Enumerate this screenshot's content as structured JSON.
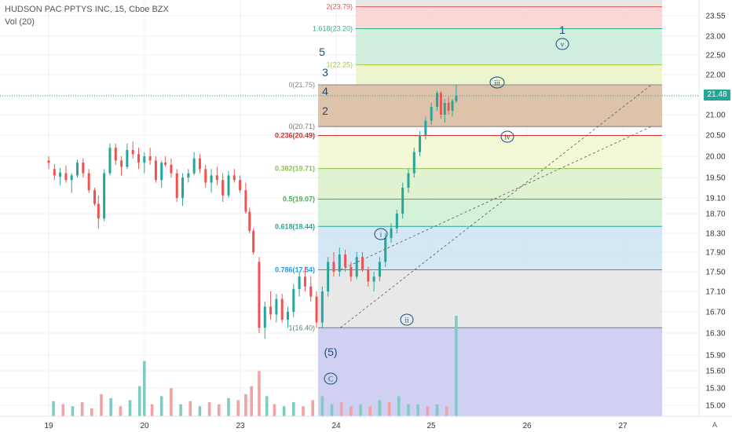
{
  "legend": {
    "symbol": "HUDSON PAC PPTYS INC, 15, Cboe BZX",
    "volume_label": "Vol (20)"
  },
  "last_price": "21.48",
  "auto_label": "A",
  "colors": {
    "up": "#26a69a",
    "down": "#ef5350",
    "wave_blue": "#1a4d7c",
    "grid": "#eef0f3"
  },
  "chart_data": {
    "type": "candlestick",
    "y_axis": {
      "ticks": [
        "23.55",
        "23.00",
        "22.50",
        "22.00",
        "21.50",
        "21.00",
        "20.50",
        "20.00",
        "19.50",
        "19.10",
        "18.70",
        "18.30",
        "17.90",
        "17.50",
        "17.10",
        "16.70",
        "16.30",
        "15.90",
        "15.60",
        "15.30",
        "15.00"
      ]
    },
    "x_axis": {
      "ticks": [
        "19",
        "20",
        "23",
        "24",
        "25",
        "26",
        "27"
      ]
    },
    "fib_levels": [
      {
        "label": "2(23.79)",
        "value": 23.79,
        "color": "#e05555",
        "fill": "#f8d0d0"
      },
      {
        "label": "1.618(23.20)",
        "value": 23.2,
        "color": "#2db380",
        "fill": "#c8ecd9"
      },
      {
        "label": "1(22.25)",
        "value": 22.25,
        "color": "#a6c83a",
        "fill": "#e9f3c4"
      },
      {
        "label": "0(21.75)",
        "value": 21.75,
        "color": "#888888",
        "fill": null
      },
      {
        "label": "0(20.71)",
        "value": 20.71,
        "color": "#777777",
        "fill": null
      },
      {
        "label": "0.236(20.49)",
        "value": 20.49,
        "color": "#d32f2f",
        "fill": "#f1f7cf"
      },
      {
        "label": "0.382(19.71)",
        "value": 19.71,
        "color": "#8bc34a",
        "fill": "#dbf0c8"
      },
      {
        "label": "0.5(19.07)",
        "value": 19.07,
        "color": "#4caf50",
        "fill": "#cdeed3"
      },
      {
        "label": "0.618(18.44)",
        "value": 18.44,
        "color": "#26a69a",
        "fill": "#cde3f3"
      },
      {
        "label": "0.786(17.54)",
        "value": 17.54,
        "color": "#2196f3",
        "fill": "#e4e4e4"
      },
      {
        "label": "1(16.40)",
        "value": 16.4,
        "color": "#607d8b",
        "fill": "#cfd0f2"
      }
    ],
    "wave_labels": [
      {
        "text": "1",
        "circled": false
      },
      {
        "text": "v",
        "circled": true
      },
      {
        "text": "5",
        "circled": false
      },
      {
        "text": "3",
        "circled": false
      },
      {
        "text": "4",
        "circled": false
      },
      {
        "text": "2",
        "circled": false
      },
      {
        "text": "iii",
        "circled": true
      },
      {
        "text": "iv",
        "circled": true
      },
      {
        "text": "i",
        "circled": true
      },
      {
        "text": "ii",
        "circled": true
      },
      {
        "text": "(5)",
        "circled": false
      },
      {
        "text": "C",
        "circled": true
      }
    ],
    "candles": [
      {
        "t": 0,
        "o": 19.9,
        "h": 20.0,
        "l": 19.7,
        "c": 19.85
      },
      {
        "t": 0.06,
        "o": 19.7,
        "h": 19.82,
        "l": 19.45,
        "c": 19.55
      },
      {
        "t": 0.12,
        "o": 19.52,
        "h": 19.72,
        "l": 19.35,
        "c": 19.62
      },
      {
        "t": 0.18,
        "o": 19.6,
        "h": 19.78,
        "l": 19.4,
        "c": 19.45
      },
      {
        "t": 0.24,
        "o": 19.45,
        "h": 19.6,
        "l": 19.2,
        "c": 19.55
      },
      {
        "t": 0.3,
        "o": 19.55,
        "h": 19.92,
        "l": 19.5,
        "c": 19.85
      },
      {
        "t": 0.36,
        "o": 19.85,
        "h": 19.95,
        "l": 19.5,
        "c": 19.6
      },
      {
        "t": 0.42,
        "o": 19.6,
        "h": 19.7,
        "l": 19.2,
        "c": 19.25
      },
      {
        "t": 0.48,
        "o": 19.25,
        "h": 19.3,
        "l": 18.9,
        "c": 18.95
      },
      {
        "t": 0.52,
        "o": 18.95,
        "h": 19.15,
        "l": 18.4,
        "c": 18.6
      },
      {
        "t": 0.58,
        "o": 18.6,
        "h": 19.7,
        "l": 18.55,
        "c": 19.6
      },
      {
        "t": 0.64,
        "o": 19.6,
        "h": 20.3,
        "l": 19.55,
        "c": 20.2
      },
      {
        "t": 0.7,
        "o": 20.2,
        "h": 20.3,
        "l": 19.8,
        "c": 19.9
      },
      {
        "t": 0.76,
        "o": 19.9,
        "h": 20.0,
        "l": 19.55,
        "c": 19.75
      },
      {
        "t": 0.82,
        "o": 19.75,
        "h": 20.3,
        "l": 19.7,
        "c": 20.15
      },
      {
        "t": 0.88,
        "o": 20.15,
        "h": 20.35,
        "l": 19.95,
        "c": 20.05
      },
      {
        "t": 0.94,
        "o": 20.05,
        "h": 20.2,
        "l": 19.7,
        "c": 19.85
      },
      {
        "t": 1.0,
        "o": 19.85,
        "h": 20.1,
        "l": 19.6,
        "c": 20.0
      },
      {
        "t": 1.06,
        "o": 20.0,
        "h": 20.2,
        "l": 19.8,
        "c": 19.9
      },
      {
        "t": 1.12,
        "o": 19.9,
        "h": 20.0,
        "l": 19.4,
        "c": 19.45
      },
      {
        "t": 1.18,
        "o": 19.45,
        "h": 19.9,
        "l": 19.3,
        "c": 19.85
      },
      {
        "t": 1.22,
        "o": 19.85,
        "h": 20.0,
        "l": 19.75,
        "c": 19.8
      },
      {
        "t": 1.28,
        "o": 19.8,
        "h": 19.95,
        "l": 19.5,
        "c": 19.6
      },
      {
        "t": 1.34,
        "o": 19.6,
        "h": 19.7,
        "l": 19.0,
        "c": 19.1
      },
      {
        "t": 1.4,
        "o": 19.1,
        "h": 19.6,
        "l": 18.9,
        "c": 19.5
      },
      {
        "t": 1.46,
        "o": 19.5,
        "h": 19.7,
        "l": 19.4,
        "c": 19.6
      },
      {
        "t": 1.52,
        "o": 19.6,
        "h": 20.1,
        "l": 19.55,
        "c": 19.95
      },
      {
        "t": 1.58,
        "o": 19.95,
        "h": 20.05,
        "l": 19.6,
        "c": 19.7
      },
      {
        "t": 1.64,
        "o": 19.7,
        "h": 19.8,
        "l": 19.3,
        "c": 19.4
      },
      {
        "t": 1.7,
        "o": 19.4,
        "h": 19.7,
        "l": 19.2,
        "c": 19.55
      },
      {
        "t": 1.76,
        "o": 19.55,
        "h": 19.75,
        "l": 19.35,
        "c": 19.45
      },
      {
        "t": 1.82,
        "o": 19.45,
        "h": 19.6,
        "l": 19.0,
        "c": 19.15
      },
      {
        "t": 1.88,
        "o": 19.15,
        "h": 19.65,
        "l": 19.1,
        "c": 19.55
      },
      {
        "t": 1.94,
        "o": 19.55,
        "h": 19.7,
        "l": 19.4,
        "c": 19.45
      },
      {
        "t": 2.0,
        "o": 19.45,
        "h": 19.55,
        "l": 19.2,
        "c": 19.25
      },
      {
        "t": 2.06,
        "o": 19.25,
        "h": 19.4,
        "l": 18.7,
        "c": 18.75
      },
      {
        "t": 2.1,
        "o": 18.75,
        "h": 18.85,
        "l": 18.3,
        "c": 18.35
      },
      {
        "t": 2.14,
        "o": 18.35,
        "h": 18.4,
        "l": 17.85,
        "c": 17.9
      },
      {
        "t": 2.2,
        "o": 17.7,
        "h": 17.8,
        "l": 16.3,
        "c": 16.4
      },
      {
        "t": 2.26,
        "o": 16.4,
        "h": 16.9,
        "l": 16.2,
        "c": 16.8
      },
      {
        "t": 2.32,
        "o": 16.8,
        "h": 17.1,
        "l": 16.55,
        "c": 16.65
      },
      {
        "t": 2.38,
        "o": 16.65,
        "h": 17.05,
        "l": 16.5,
        "c": 16.95
      },
      {
        "t": 2.44,
        "o": 16.95,
        "h": 17.05,
        "l": 16.5,
        "c": 16.55
      },
      {
        "t": 2.5,
        "o": 16.55,
        "h": 16.8,
        "l": 16.4,
        "c": 16.7
      },
      {
        "t": 2.56,
        "o": 16.7,
        "h": 17.25,
        "l": 16.6,
        "c": 17.15
      },
      {
        "t": 2.62,
        "o": 17.15,
        "h": 17.5,
        "l": 17.0,
        "c": 17.4
      },
      {
        "t": 2.68,
        "o": 17.4,
        "h": 17.6,
        "l": 17.1,
        "c": 17.2
      },
      {
        "t": 2.74,
        "o": 17.2,
        "h": 17.4,
        "l": 16.9,
        "c": 17.0
      },
      {
        "t": 2.8,
        "o": 17.0,
        "h": 17.1,
        "l": 16.4,
        "c": 16.5
      },
      {
        "t": 2.86,
        "o": 16.5,
        "h": 17.2,
        "l": 16.4,
        "c": 17.1
      },
      {
        "t": 2.92,
        "o": 17.1,
        "h": 17.8,
        "l": 17.0,
        "c": 17.7
      },
      {
        "t": 2.98,
        "o": 17.7,
        "h": 17.9,
        "l": 17.4,
        "c": 17.5
      },
      {
        "t": 3.04,
        "o": 17.5,
        "h": 18.0,
        "l": 17.4,
        "c": 17.85
      },
      {
        "t": 3.1,
        "o": 17.85,
        "h": 17.95,
        "l": 17.5,
        "c": 17.6
      },
      {
        "t": 3.16,
        "o": 17.6,
        "h": 17.7,
        "l": 17.3,
        "c": 17.4
      },
      {
        "t": 3.22,
        "o": 17.4,
        "h": 17.9,
        "l": 17.35,
        "c": 17.8
      },
      {
        "t": 3.28,
        "o": 17.8,
        "h": 17.9,
        "l": 17.5,
        "c": 17.55
      },
      {
        "t": 3.34,
        "o": 17.55,
        "h": 17.6,
        "l": 17.2,
        "c": 17.3
      },
      {
        "t": 3.4,
        "o": 17.3,
        "h": 17.5,
        "l": 17.1,
        "c": 17.4
      },
      {
        "t": 3.46,
        "o": 17.4,
        "h": 17.8,
        "l": 17.3,
        "c": 17.7
      },
      {
        "t": 3.52,
        "o": 17.7,
        "h": 18.3,
        "l": 17.6,
        "c": 18.2
      },
      {
        "t": 3.58,
        "o": 18.2,
        "h": 18.5,
        "l": 18.1,
        "c": 18.4
      },
      {
        "t": 3.64,
        "o": 18.4,
        "h": 18.8,
        "l": 18.3,
        "c": 18.7
      },
      {
        "t": 3.7,
        "o": 18.7,
        "h": 19.4,
        "l": 18.6,
        "c": 19.3
      },
      {
        "t": 3.76,
        "o": 19.3,
        "h": 19.7,
        "l": 19.2,
        "c": 19.6
      },
      {
        "t": 3.82,
        "o": 19.6,
        "h": 20.2,
        "l": 19.5,
        "c": 20.1
      },
      {
        "t": 3.88,
        "o": 20.1,
        "h": 20.6,
        "l": 20.0,
        "c": 20.5
      },
      {
        "t": 3.94,
        "o": 20.5,
        "h": 20.95,
        "l": 20.4,
        "c": 20.85
      },
      {
        "t": 4.0,
        "o": 20.85,
        "h": 21.3,
        "l": 20.75,
        "c": 21.2
      },
      {
        "t": 4.06,
        "o": 21.2,
        "h": 21.6,
        "l": 21.1,
        "c": 21.55
      },
      {
        "t": 4.1,
        "o": 21.55,
        "h": 21.6,
        "l": 20.9,
        "c": 21.0
      },
      {
        "t": 4.14,
        "o": 21.0,
        "h": 21.4,
        "l": 20.8,
        "c": 21.3
      },
      {
        "t": 4.18,
        "o": 21.3,
        "h": 21.45,
        "l": 21.0,
        "c": 21.1
      },
      {
        "t": 4.22,
        "o": 21.1,
        "h": 21.4,
        "l": 20.95,
        "c": 21.35
      },
      {
        "t": 4.26,
        "o": 21.35,
        "h": 21.75,
        "l": 21.3,
        "c": 21.48
      }
    ],
    "volume": [
      {
        "t": 0.05,
        "v": 0.15,
        "up": true
      },
      {
        "t": 0.15,
        "v": 0.12,
        "up": false
      },
      {
        "t": 0.25,
        "v": 0.1,
        "up": true
      },
      {
        "t": 0.35,
        "v": 0.14,
        "up": false
      },
      {
        "t": 0.45,
        "v": 0.08,
        "up": false
      },
      {
        "t": 0.55,
        "v": 0.22,
        "up": false
      },
      {
        "t": 0.65,
        "v": 0.18,
        "up": true
      },
      {
        "t": 0.75,
        "v": 0.1,
        "up": false
      },
      {
        "t": 0.85,
        "v": 0.16,
        "up": true
      },
      {
        "t": 0.95,
        "v": 0.3,
        "up": true
      },
      {
        "t": 1.0,
        "v": 0.55,
        "up": true
      },
      {
        "t": 1.08,
        "v": 0.12,
        "up": false
      },
      {
        "t": 1.18,
        "v": 0.2,
        "up": true
      },
      {
        "t": 1.28,
        "v": 0.28,
        "up": false
      },
      {
        "t": 1.38,
        "v": 0.12,
        "up": true
      },
      {
        "t": 1.48,
        "v": 0.15,
        "up": false
      },
      {
        "t": 1.58,
        "v": 0.1,
        "up": true
      },
      {
        "t": 1.68,
        "v": 0.14,
        "up": false
      },
      {
        "t": 1.78,
        "v": 0.12,
        "up": false
      },
      {
        "t": 1.88,
        "v": 0.18,
        "up": true
      },
      {
        "t": 1.98,
        "v": 0.16,
        "up": false
      },
      {
        "t": 2.06,
        "v": 0.22,
        "up": false
      },
      {
        "t": 2.12,
        "v": 0.3,
        "up": false
      },
      {
        "t": 2.2,
        "v": 0.45,
        "up": false
      },
      {
        "t": 2.28,
        "v": 0.2,
        "up": true
      },
      {
        "t": 2.36,
        "v": 0.12,
        "up": false
      },
      {
        "t": 2.46,
        "v": 0.1,
        "up": true
      },
      {
        "t": 2.56,
        "v": 0.14,
        "up": true
      },
      {
        "t": 2.66,
        "v": 0.1,
        "up": false
      },
      {
        "t": 2.76,
        "v": 0.16,
        "up": false
      },
      {
        "t": 2.86,
        "v": 0.2,
        "up": true
      },
      {
        "t": 2.96,
        "v": 0.12,
        "up": true
      },
      {
        "t": 3.06,
        "v": 0.14,
        "up": false
      },
      {
        "t": 3.16,
        "v": 0.1,
        "up": false
      },
      {
        "t": 3.26,
        "v": 0.12,
        "up": true
      },
      {
        "t": 3.36,
        "v": 0.1,
        "up": false
      },
      {
        "t": 3.46,
        "v": 0.16,
        "up": true
      },
      {
        "t": 3.56,
        "v": 0.14,
        "up": false
      },
      {
        "t": 3.66,
        "v": 0.2,
        "up": true
      },
      {
        "t": 3.76,
        "v": 0.12,
        "up": true
      },
      {
        "t": 3.86,
        "v": 0.12,
        "up": true
      },
      {
        "t": 3.96,
        "v": 0.1,
        "up": false
      },
      {
        "t": 4.06,
        "v": 0.12,
        "up": true
      },
      {
        "t": 4.16,
        "v": 0.1,
        "up": false
      },
      {
        "t": 4.26,
        "v": 1.0,
        "up": true
      }
    ],
    "trendlines": [
      {
        "from": {
          "t": 3.05,
          "price": 16.4
        },
        "to": {
          "t": 6.3,
          "price": 21.75
        }
      },
      {
        "from": {
          "t": 3.05,
          "price": 17.54
        },
        "to": {
          "t": 6.3,
          "price": 20.71
        }
      }
    ]
  }
}
